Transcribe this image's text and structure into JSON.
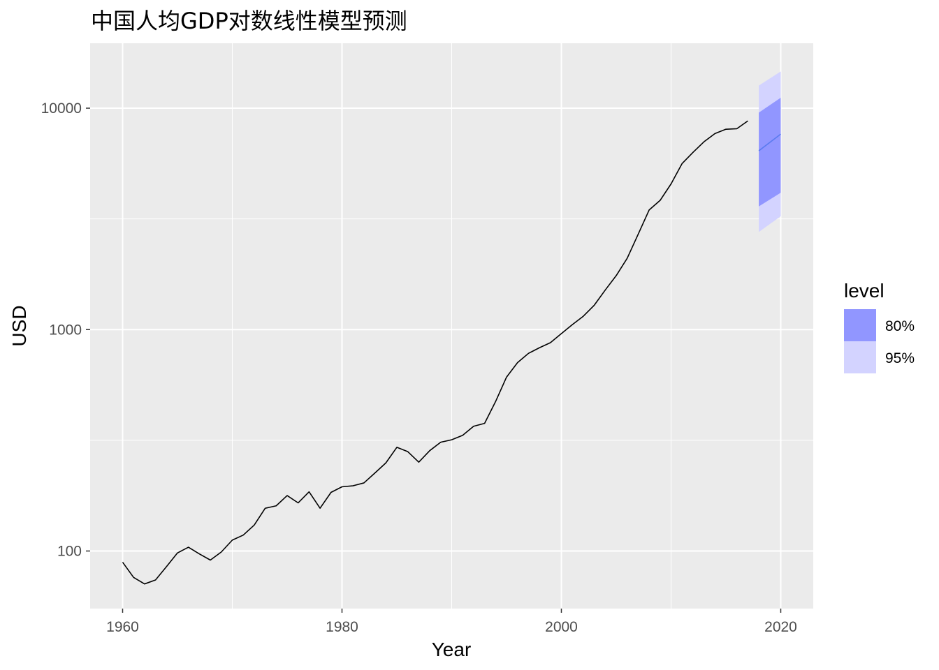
{
  "chart_data": {
    "type": "line",
    "title": "中国人均GDP对数线性模型预测",
    "xlabel": "Year",
    "ylabel": "USD",
    "y_scale": "log10",
    "xlim": [
      1957,
      2023
    ],
    "ylim": [
      55,
      17000
    ],
    "x_ticks": [
      1960,
      1980,
      2000,
      2020
    ],
    "x_tick_labels": [
      "1960",
      "1980",
      "2000",
      "2020"
    ],
    "y_ticks": [
      100,
      1000,
      10000
    ],
    "y_tick_labels": [
      "100",
      "1000",
      "10000"
    ],
    "grid": true,
    "colors": {
      "panel_background": "#ebebeb",
      "grid_line": "#ffffff",
      "history_line": "#000000",
      "forecast_line": "#5b7bf0",
      "band_80": "#9196ff",
      "band_95": "#d3d3ff"
    },
    "series": [
      {
        "x": [
          1960,
          1961,
          1962,
          1963,
          1964,
          1965,
          1966,
          1967,
          1968,
          1969,
          1970,
          1971,
          1972,
          1973,
          1974,
          1975,
          1976,
          1977,
          1978,
          1979,
          1980,
          1981,
          1982,
          1983,
          1984,
          1985,
          1986,
          1987,
          1988,
          1989,
          1990,
          1991,
          1992,
          1993,
          1994,
          1995,
          1996,
          1997,
          1998,
          1999,
          2000,
          2001,
          2002,
          2003,
          2004,
          2005,
          2006,
          2007,
          2008,
          2009,
          2010,
          2011,
          2012,
          2013,
          2014,
          2015,
          2016,
          2017
        ],
        "values": [
          89,
          76,
          71,
          74,
          85,
          98,
          104,
          97,
          91,
          99,
          112,
          118,
          131,
          156,
          160,
          178,
          165,
          185,
          156,
          184,
          195,
          197,
          203,
          225,
          250,
          294,
          281,
          252,
          284,
          310,
          318,
          333,
          366,
          377,
          473,
          610,
          709,
          781,
          828,
          873,
          959,
          1053,
          1149,
          1289,
          1509,
          1753,
          2099,
          2694,
          3468,
          3832,
          4550,
          5618,
          6317,
          7051,
          7679,
          8033,
          8079,
          8759
        ]
      }
    ],
    "forecast": {
      "x": [
        2018,
        2020
      ],
      "mean": [
        6420,
        7640
      ],
      "lo80": [
        3600,
        4150
      ],
      "hi80": [
        9550,
        11150
      ],
      "lo95": [
        2760,
        3250
      ],
      "hi95": [
        12650,
        14650
      ]
    },
    "legend": {
      "title": "level",
      "position": "right",
      "items": [
        {
          "label": "80%",
          "color": "#9196ff"
        },
        {
          "label": "95%",
          "color": "#d3d3ff"
        }
      ]
    }
  }
}
